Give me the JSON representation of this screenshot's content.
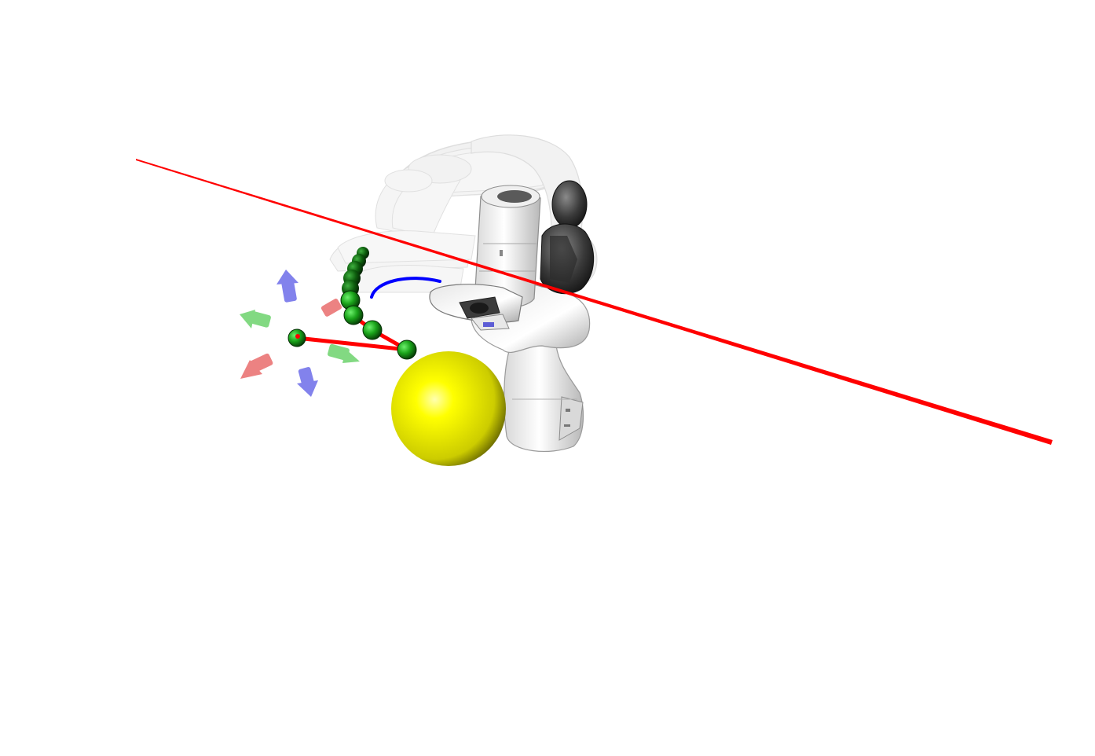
{
  "scene": {
    "background_color": "#ffffff",
    "objects": {
      "robot_arm": {
        "icon": "robot-arm-icon",
        "body_color": "#f2f2f2",
        "joint_color": "#3a3a3a",
        "ghost_trail_color": "#d6d6d6"
      },
      "target_sphere": {
        "icon": "sphere-icon",
        "color": "#ffff00"
      },
      "waypoint_markers": {
        "icon": "waypoint-icon",
        "color": "#1aa31a",
        "dark_color": "#0d5e0d"
      },
      "path_segments": {
        "color": "#ff0000"
      },
      "axis_line": {
        "color": "#ff0000"
      },
      "orientation_arrows": {
        "icon": "arrow-icon",
        "x_color": "#e03030",
        "y_color": "#30c030",
        "z_color": "#3030e0"
      },
      "end_effector_arc": {
        "color": "#0000ff"
      }
    }
  }
}
